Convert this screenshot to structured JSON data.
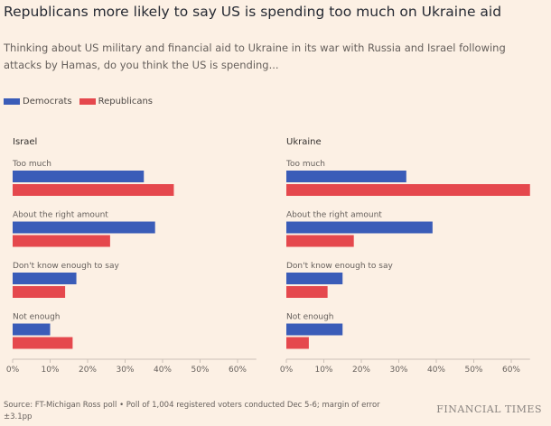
{
  "title": "Republicans more likely to say US is spending too much on Ukraine aid",
  "subtitle": "Thinking about US military and financial aid to Ukraine in its war with Russia and Israel following attacks by Hamas, do you think the US is spending...",
  "source": "Source: FT-Michigan Ross poll • Poll of 1,004 registered voters conducted Dec 5-6; margin of error ±3.1pp",
  "logo": "FINANCIAL TIMES",
  "legend": [
    {
      "name": "Democrats",
      "color": "#3a5cb8"
    },
    {
      "name": "Republicans",
      "color": "#e5484d"
    }
  ],
  "chart_data": [
    {
      "type": "bar",
      "orientation": "horizontal",
      "title": "Israel",
      "categories": [
        "Too much",
        "About the right amount",
        "Don't know enough to say",
        "Not enough"
      ],
      "series": [
        {
          "name": "Democrats",
          "values": [
            35,
            38,
            17,
            10
          ]
        },
        {
          "name": "Republicans",
          "values": [
            43,
            26,
            14,
            16
          ]
        }
      ],
      "xlim": [
        0,
        65
      ],
      "ticks": [
        "0%",
        "10%",
        "20%",
        "30%",
        "40%",
        "50%",
        "60%"
      ],
      "legend": "top-left"
    },
    {
      "type": "bar",
      "orientation": "horizontal",
      "title": "Ukraine",
      "categories": [
        "Too much",
        "About the right amount",
        "Don't know enough to say",
        "Not enough"
      ],
      "series": [
        {
          "name": "Democrats",
          "values": [
            32,
            39,
            15,
            15
          ]
        },
        {
          "name": "Republicans",
          "values": [
            65,
            18,
            11,
            6
          ]
        }
      ],
      "xlim": [
        0,
        65
      ],
      "ticks": [
        "0%",
        "10%",
        "20%",
        "30%",
        "40%",
        "50%",
        "60%"
      ],
      "legend": "top-left"
    }
  ]
}
